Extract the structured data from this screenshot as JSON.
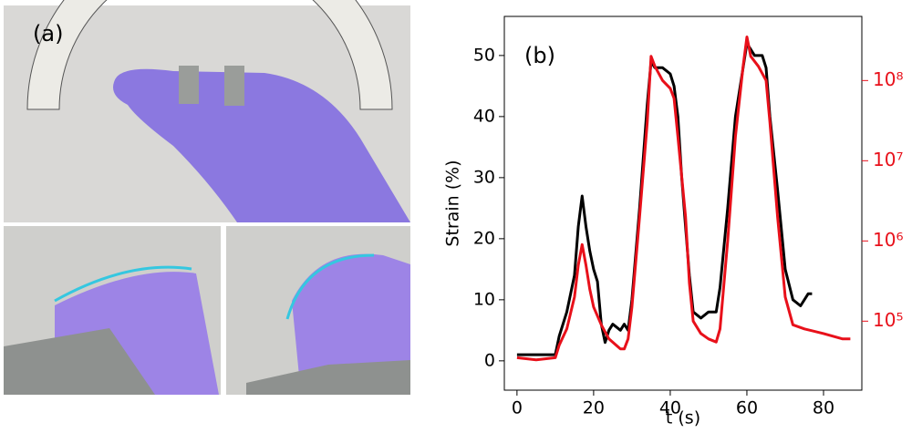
{
  "panel_a": {
    "label": "(a)"
  },
  "chart_data": {
    "type": "line",
    "panel_label": "(b)",
    "xlabel": "t (s)",
    "ylabel": "Strain (%)",
    "xlim": [
      -3.3,
      90
    ],
    "xticks": [
      0,
      20,
      40,
      60,
      80
    ],
    "ylim": [
      -4.8,
      56.4
    ],
    "yticks": [
      0,
      10,
      20,
      30,
      40,
      50
    ],
    "y2lim": [
      13800,
      630000000
    ],
    "y2log": true,
    "y2ticks": [
      {
        "value": 100000,
        "label": "10⁵"
      },
      {
        "value": 1000000,
        "label": "10⁶"
      },
      {
        "value": 10000000,
        "label": "10⁷"
      },
      {
        "value": 100000000,
        "label": "10⁸"
      }
    ],
    "y2color": "#e8101a",
    "series": [
      {
        "color": "#000000",
        "axis": "y",
        "x": [
          0,
          10,
          11,
          13,
          15,
          16,
          17,
          18,
          19,
          20,
          21,
          22,
          23,
          24,
          25,
          27,
          28,
          29,
          30,
          32,
          34,
          35,
          36,
          38,
          40,
          41,
          42,
          43,
          45,
          46,
          48,
          50,
          52,
          53,
          55,
          57,
          59,
          60,
          62,
          64,
          65,
          66,
          68,
          70,
          72,
          74,
          76,
          77
        ],
        "values": [
          1,
          1,
          4,
          8,
          14,
          22,
          27,
          22,
          18,
          15,
          13,
          6,
          3,
          5,
          6,
          5,
          6,
          5,
          10,
          25,
          42,
          49,
          48,
          48,
          47,
          45,
          40,
          30,
          14,
          8,
          7,
          8,
          8,
          12,
          25,
          40,
          48,
          52,
          50,
          50,
          48,
          40,
          28,
          15,
          10,
          9,
          11,
          11
        ]
      },
      {
        "color": "#e8101a",
        "axis": "y2",
        "x": [
          0,
          5,
          10,
          11,
          13,
          15,
          16,
          17,
          18,
          19,
          20,
          22,
          24,
          27,
          28,
          29,
          30,
          32,
          34,
          35,
          36,
          38,
          40,
          41,
          42,
          44,
          45,
          46,
          48,
          50,
          52,
          53,
          55,
          57,
          59,
          60,
          61,
          63,
          65,
          66,
          68,
          70,
          72,
          75,
          80,
          85,
          87
        ],
        "values": [
          35000,
          33000,
          35000,
          50000,
          80000,
          200000,
          500000,
          900000,
          500000,
          250000,
          150000,
          90000,
          60000,
          45000,
          45000,
          60000,
          150000,
          2000000,
          30000000,
          200000000,
          150000000,
          100000000,
          80000000,
          60000000,
          20000000,
          2000000,
          300000,
          100000,
          70000,
          60000,
          55000,
          80000,
          1000000,
          20000000,
          150000000,
          350000000,
          200000000,
          150000000,
          100000000,
          30000000,
          2000000,
          200000,
          90000,
          80000,
          70000,
          60000,
          60000
        ]
      }
    ]
  }
}
